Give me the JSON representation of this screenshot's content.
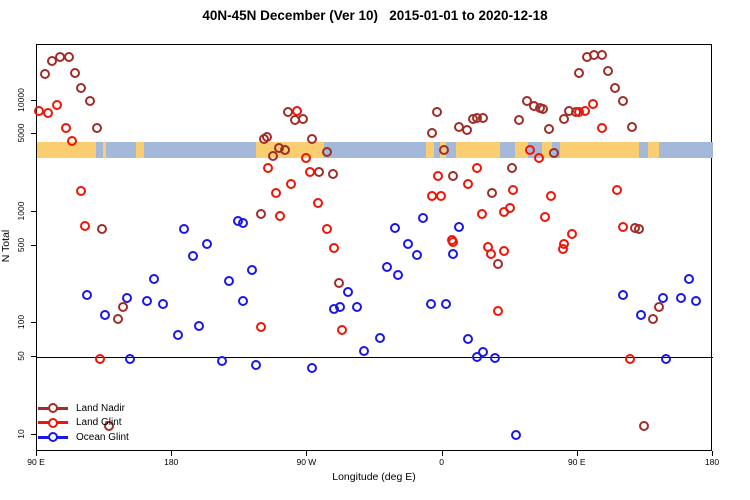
{
  "title": "40N-45N December (Ver 10)   2015-01-01 to 2020-12-18",
  "axes": {
    "x_label": "Longitude (deg E)",
    "y_label": "N Total",
    "x_ticks": [
      {
        "value": 90,
        "label": "90 E"
      },
      {
        "value": 180,
        "label": "180"
      },
      {
        "value": 270,
        "label": "90 W"
      },
      {
        "value": 360,
        "label": "0"
      },
      {
        "value": 450,
        "label": "90 E"
      },
      {
        "value": 540,
        "label": "180"
      }
    ],
    "y_ticks": [
      {
        "value": 10,
        "label": "10"
      },
      {
        "value": 50,
        "label": "50"
      },
      {
        "value": 100,
        "label": "100"
      },
      {
        "value": 500,
        "label": "500"
      },
      {
        "value": 1000,
        "label": "1000"
      },
      {
        "value": 5000,
        "label": "5000"
      },
      {
        "value": 10000,
        "label": "10000"
      }
    ]
  },
  "legend": [
    {
      "label": "Land Nadir",
      "color": "#A02D28"
    },
    {
      "label": "Land Glint",
      "color": "#F01507"
    },
    {
      "label": "Ocean Glint",
      "color": "#1A18E8"
    }
  ],
  "colors": {
    "land_nadir": "#A02D28",
    "land_glint": "#F01507",
    "ocean_glint": "#1A18E8",
    "band_land": "#FACD70",
    "band_ocean": "#A4B8DA",
    "reference_line": "#000000"
  },
  "chart_data": {
    "type": "scatter",
    "title": "40N-45N December (Ver 10)   2015-01-01 to 2020-12-18",
    "xlabel": "Longitude (deg E)",
    "ylabel": "N Total",
    "x_axis": {
      "unit": "degrees east, wrapped",
      "range": [
        90,
        540
      ],
      "tick_values": [
        90,
        180,
        270,
        360,
        450,
        540
      ]
    },
    "y_axis": {
      "scale": "log10",
      "range": [
        7,
        32000
      ],
      "tick_values": [
        10,
        50,
        100,
        500,
        1000,
        5000,
        10000
      ]
    },
    "grid": false,
    "legend_position": "bottom-left",
    "reference_line_y": 50,
    "map_band": {
      "n_range": [
        3050,
        4300
      ],
      "segments": [
        {
          "from": 90,
          "to": 136,
          "type": "land"
        },
        {
          "from": 136,
          "to": 236,
          "type": "ocean"
        },
        {
          "from": 236,
          "to": 281,
          "type": "land"
        },
        {
          "from": 281,
          "to": 349,
          "type": "ocean"
        },
        {
          "from": 349,
          "to": 354,
          "type": "land"
        },
        {
          "from": 354,
          "to": 358,
          "type": "ocean"
        },
        {
          "from": 358,
          "to": 362,
          "type": "land"
        },
        {
          "from": 362,
          "to": 369,
          "type": "ocean"
        },
        {
          "from": 369,
          "to": 398,
          "type": "land"
        },
        {
          "from": 398,
          "to": 408,
          "type": "ocean"
        },
        {
          "from": 408,
          "to": 417,
          "type": "land"
        },
        {
          "from": 417,
          "to": 426,
          "type": "ocean"
        },
        {
          "from": 426,
          "to": 433,
          "type": "land"
        },
        {
          "from": 433,
          "to": 438,
          "type": "ocean"
        },
        {
          "from": 438,
          "to": 491,
          "type": "land"
        },
        {
          "from": 491,
          "to": 540,
          "type": "ocean"
        }
      ],
      "overlays": [
        {
          "from": 129,
          "to": 134,
          "type": "ocean"
        },
        {
          "from": 156,
          "to": 161,
          "type": "land"
        },
        {
          "from": 497,
          "to": 504,
          "type": "land"
        }
      ]
    },
    "series": [
      {
        "name": "Land Nadir",
        "color_key": "land_nadir",
        "points": [
          [
            95,
            17500
          ],
          [
            100,
            23000
          ],
          [
            105,
            25000
          ],
          [
            111,
            25000
          ],
          [
            115,
            18000
          ],
          [
            119,
            13000
          ],
          [
            125,
            10000
          ],
          [
            130,
            5700
          ],
          [
            133,
            710
          ],
          [
            138,
            12
          ],
          [
            144,
            110
          ],
          [
            147,
            140
          ],
          [
            239,
            960
          ],
          [
            241,
            4600
          ],
          [
            243,
            4700
          ],
          [
            247,
            3200
          ],
          [
            251,
            3800
          ],
          [
            255,
            3650
          ],
          [
            257,
            8000
          ],
          [
            262,
            6800
          ],
          [
            267,
            6900
          ],
          [
            273,
            4600
          ],
          [
            278,
            2300
          ],
          [
            283,
            3500
          ],
          [
            287,
            2200
          ],
          [
            291,
            230
          ],
          [
            353,
            5200
          ],
          [
            356,
            7900
          ],
          [
            361,
            3600
          ],
          [
            367,
            2100
          ],
          [
            371,
            5800
          ],
          [
            376,
            5500
          ],
          [
            380,
            6900
          ],
          [
            383,
            7000
          ],
          [
            387,
            7100
          ],
          [
            393,
            1500
          ],
          [
            397,
            340
          ],
          [
            406,
            2500
          ],
          [
            411,
            6800
          ],
          [
            416,
            9900
          ],
          [
            421,
            9100
          ],
          [
            425,
            8700
          ],
          [
            427,
            8500
          ],
          [
            431,
            5600
          ],
          [
            434,
            3400
          ],
          [
            441,
            6900
          ],
          [
            444,
            8100
          ],
          [
            449,
            8000
          ],
          [
            451,
            18000
          ],
          [
            456,
            25000
          ],
          [
            461,
            26000
          ],
          [
            466,
            26000
          ],
          [
            470,
            18500
          ],
          [
            475,
            13000
          ],
          [
            480,
            10000
          ],
          [
            486,
            5800
          ],
          [
            488,
            720
          ],
          [
            491,
            710
          ],
          [
            494,
            12
          ],
          [
            500,
            110
          ],
          [
            504,
            140
          ]
        ]
      },
      {
        "name": "Land Glint",
        "color_key": "land_glint",
        "points": [
          [
            91,
            8100
          ],
          [
            97,
            7800
          ],
          [
            103,
            9300
          ],
          [
            109,
            5700
          ],
          [
            113,
            4400
          ],
          [
            119,
            1550
          ],
          [
            122,
            750
          ],
          [
            132,
            48
          ],
          [
            239,
            93
          ],
          [
            244,
            2500
          ],
          [
            249,
            1500
          ],
          [
            252,
            930
          ],
          [
            259,
            1800
          ],
          [
            263,
            8100
          ],
          [
            269,
            3100
          ],
          [
            272,
            2300
          ],
          [
            277,
            1200
          ],
          [
            283,
            710
          ],
          [
            288,
            480
          ],
          [
            293,
            88
          ],
          [
            353,
            1400
          ],
          [
            357,
            2100
          ],
          [
            359,
            1400
          ],
          [
            366,
            560
          ],
          [
            367,
            540
          ],
          [
            377,
            1800
          ],
          [
            383,
            2500
          ],
          [
            386,
            960
          ],
          [
            390,
            490
          ],
          [
            392,
            420
          ],
          [
            397,
            130
          ],
          [
            401,
            1000
          ],
          [
            401,
            450
          ],
          [
            405,
            1100
          ],
          [
            407,
            1600
          ],
          [
            418,
            3600
          ],
          [
            424,
            3100
          ],
          [
            428,
            910
          ],
          [
            432,
            1400
          ],
          [
            440,
            470
          ],
          [
            441,
            520
          ],
          [
            446,
            640
          ],
          [
            451,
            8000
          ],
          [
            455,
            8100
          ],
          [
            460,
            9400
          ],
          [
            466,
            5700
          ],
          [
            476,
            1600
          ],
          [
            480,
            730
          ],
          [
            485,
            48
          ]
        ]
      },
      {
        "name": "Ocean Glint",
        "color_key": "ocean_glint",
        "points": [
          [
            123,
            180
          ],
          [
            135,
            120
          ],
          [
            150,
            170
          ],
          [
            152,
            48
          ],
          [
            163,
            160
          ],
          [
            168,
            250
          ],
          [
            174,
            150
          ],
          [
            184,
            79
          ],
          [
            188,
            700
          ],
          [
            194,
            400
          ],
          [
            198,
            95
          ],
          [
            203,
            520
          ],
          [
            213,
            46
          ],
          [
            218,
            240
          ],
          [
            224,
            830
          ],
          [
            227,
            160
          ],
          [
            227,
            800
          ],
          [
            233,
            300
          ],
          [
            236,
            42
          ],
          [
            273,
            40
          ],
          [
            288,
            135
          ],
          [
            292,
            140
          ],
          [
            297,
            190
          ],
          [
            303,
            140
          ],
          [
            308,
            57
          ],
          [
            318,
            74
          ],
          [
            323,
            320
          ],
          [
            328,
            720
          ],
          [
            330,
            270
          ],
          [
            337,
            520
          ],
          [
            343,
            410
          ],
          [
            347,
            880
          ],
          [
            352,
            150
          ],
          [
            362,
            150
          ],
          [
            367,
            420
          ],
          [
            371,
            730
          ],
          [
            377,
            72
          ],
          [
            383,
            50
          ],
          [
            387,
            55
          ],
          [
            395,
            49
          ],
          [
            409,
            10
          ],
          [
            480,
            180
          ],
          [
            492,
            120
          ],
          [
            507,
            170
          ],
          [
            509,
            48
          ],
          [
            519,
            170
          ],
          [
            524,
            250
          ],
          [
            529,
            160
          ]
        ]
      }
    ]
  }
}
